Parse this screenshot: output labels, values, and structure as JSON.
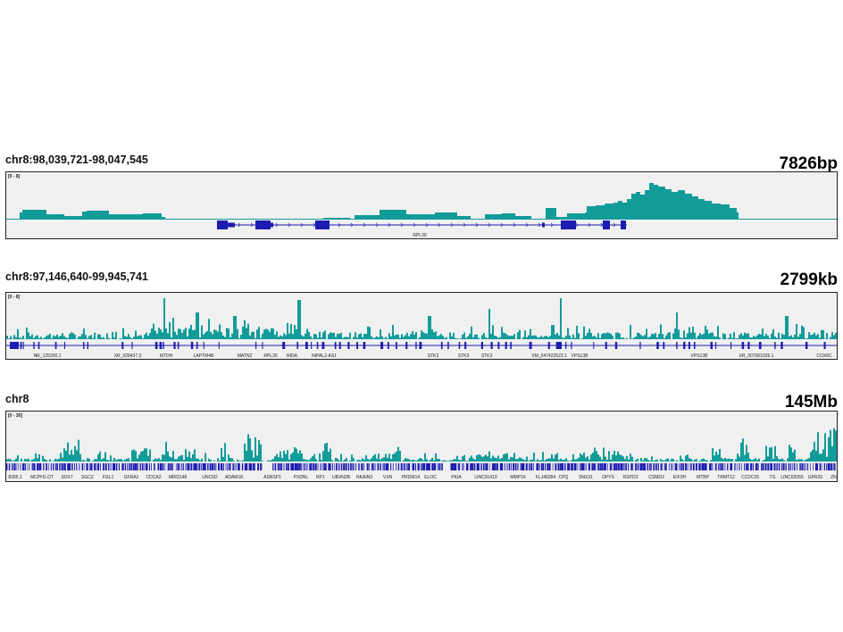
{
  "colors": {
    "signal": "#119c9a",
    "gene": "#1c1cb0",
    "track_bg": "#f0f0f0",
    "border": "#222222"
  },
  "panels": [
    {
      "locus": "chr8:98,039,721-98,047,545",
      "span": "7826bp",
      "scale": "[0 - 8]",
      "genes": [
        "RPL30"
      ]
    },
    {
      "locus": "chr8:97,146,640-99,945,741",
      "span": "2799kb",
      "scale": "[0 - 8]",
      "genes": [
        "NR_125390.1",
        "XR_928437.3",
        "MTDH",
        "LAPTM4B",
        "MATN2",
        "RPL30",
        "RIDA",
        "NIPAL2-AS1",
        "STK3",
        "STK3",
        "STK3",
        "XM_047422523.1",
        "VPS13B",
        "VPS13B",
        "XR_007061026.1",
        "COX6C"
      ]
    },
    {
      "locus": "chr8",
      "span": "145Mb",
      "scale": "[0 - 30]",
      "genes": [
        "8395.1",
        "MCPH1-DT",
        "SOX7",
        "SGCZ",
        "FGL1",
        "GFRA2",
        "CDCA2",
        "MIR3148",
        "UNC5D",
        "ADAM18",
        "ASNSP1",
        "PXDNL",
        "RP1",
        "UBXN2B",
        "NKAIN3",
        "VXN",
        "PRDM14",
        "ELOC",
        "PKIA",
        "LINC01419",
        "MMP16",
        "FLJ46284",
        "CPQ",
        "SNX31",
        "DPYS",
        "RSPO2",
        "CSMD3",
        "EIF3H",
        "MTBP",
        "TRMT12",
        "CCDC26",
        "TG",
        "LINC02055",
        "GPR20",
        "ZNF"
      ]
    }
  ]
}
